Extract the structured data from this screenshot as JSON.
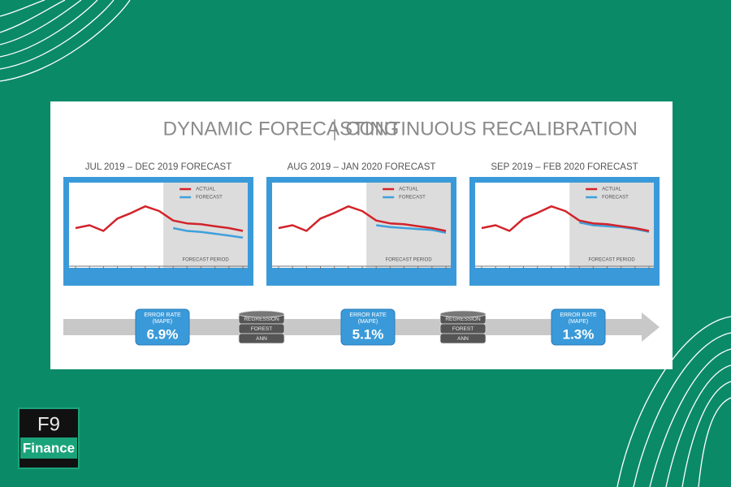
{
  "title_left": "DYNAMIC FORECASTING",
  "title_right": "CONTINUOUS RECALIBRATION",
  "panels": [
    {
      "label": "JUL 2019 – DEC 2019 FORECAST",
      "legend": [
        "ACTUAL",
        "FORECAST"
      ],
      "period_label": "FORECAST PERIOD",
      "actual": [
        4.2,
        4.5,
        3.9,
        5.2,
        5.8,
        6.5,
        6.0,
        5.0,
        4.7,
        4.6,
        4.4,
        4.2,
        3.9
      ],
      "forecast": [
        null,
        null,
        null,
        null,
        null,
        null,
        null,
        4.2,
        3.9,
        3.8,
        3.6,
        3.4,
        3.2
      ]
    },
    {
      "label": "AUG 2019 – JAN 2020 FORECAST",
      "legend": [
        "ACTUAL",
        "FORECAST"
      ],
      "period_label": "FORECAST PERIOD",
      "actual": [
        4.2,
        4.5,
        3.9,
        5.2,
        5.8,
        6.5,
        6.0,
        5.0,
        4.7,
        4.6,
        4.4,
        4.2,
        3.9
      ],
      "forecast": [
        null,
        null,
        null,
        null,
        null,
        null,
        null,
        4.5,
        4.3,
        4.2,
        4.1,
        4.0,
        3.7
      ]
    },
    {
      "label": "SEP 2019 – FEB 2020 FORECAST",
      "legend": [
        "ACTUAL",
        "FORECAST"
      ],
      "period_label": "FORECAST PERIOD",
      "actual": [
        4.2,
        4.5,
        3.9,
        5.2,
        5.8,
        6.5,
        6.0,
        5.0,
        4.7,
        4.6,
        4.4,
        4.2,
        3.9
      ],
      "forecast": [
        null,
        null,
        null,
        null,
        null,
        null,
        null,
        4.8,
        4.5,
        4.4,
        4.3,
        4.1,
        3.8
      ]
    }
  ],
  "error_rates": [
    {
      "lines": [
        "ERROR RATE",
        "(MAPE)"
      ],
      "value": "6.9%"
    },
    {
      "lines": [
        "ERROR RATE",
        "(MAPE)"
      ],
      "value": "5.1%"
    },
    {
      "lines": [
        "ERROR RATE",
        "(MAPE)"
      ],
      "value": "1.3%"
    }
  ],
  "models": [
    {
      "lines": [
        "REGRESSION",
        "FOREST",
        "ANN"
      ]
    },
    {
      "lines": [
        "REGRESSION",
        "FOREST",
        "ANN"
      ]
    }
  ],
  "logo": {
    "top": "F9",
    "bottom": "Finance"
  }
}
